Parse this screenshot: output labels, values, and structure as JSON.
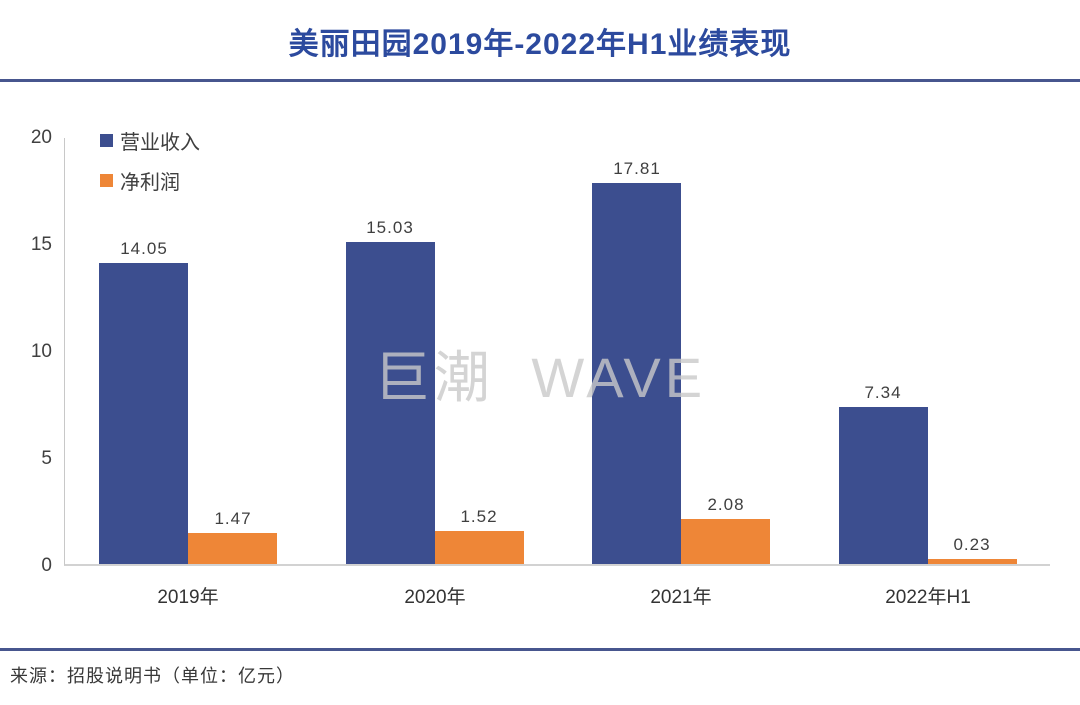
{
  "title": "美丽田园2019年-2022年H1业绩表现",
  "watermark": "巨潮 WAVE",
  "legend": [
    {
      "label": "营业收入",
      "color": "#3C4E8F"
    },
    {
      "label": "净利润",
      "color": "#EE8637"
    }
  ],
  "chart_data": {
    "type": "bar",
    "title": "美丽田园2019年-2022年H1业绩表现",
    "categories": [
      "2019年",
      "2020年",
      "2021年",
      "2022年H1"
    ],
    "series": [
      {
        "name": "营业收入",
        "color": "#3C4E8F",
        "values": [
          14.05,
          15.03,
          17.81,
          7.34
        ],
        "labels": [
          "14.05",
          "15.03",
          "17.81",
          "7.34"
        ]
      },
      {
        "name": "净利润",
        "color": "#EE8637",
        "values": [
          1.47,
          1.52,
          2.08,
          0.23
        ],
        "labels": [
          "1.47",
          "1.52",
          "2.08",
          "0.23"
        ]
      }
    ],
    "ylim": [
      0,
      20
    ],
    "yticks": [
      0,
      5,
      10,
      15,
      20
    ],
    "grid": false,
    "legend_position": "top-left",
    "unit": "亿元"
  },
  "footer": {
    "source_note": "来源：招股说明书（单位：亿元）"
  },
  "colors": {
    "bar_revenue": "#3C4E8F",
    "bar_net_profit": "#EE8637",
    "title_text": "#2C4A9E",
    "divider": "#47568E",
    "axis_line": "#C8C8C8",
    "tick_text": "#404040",
    "watermark": "#C9C9C9"
  }
}
